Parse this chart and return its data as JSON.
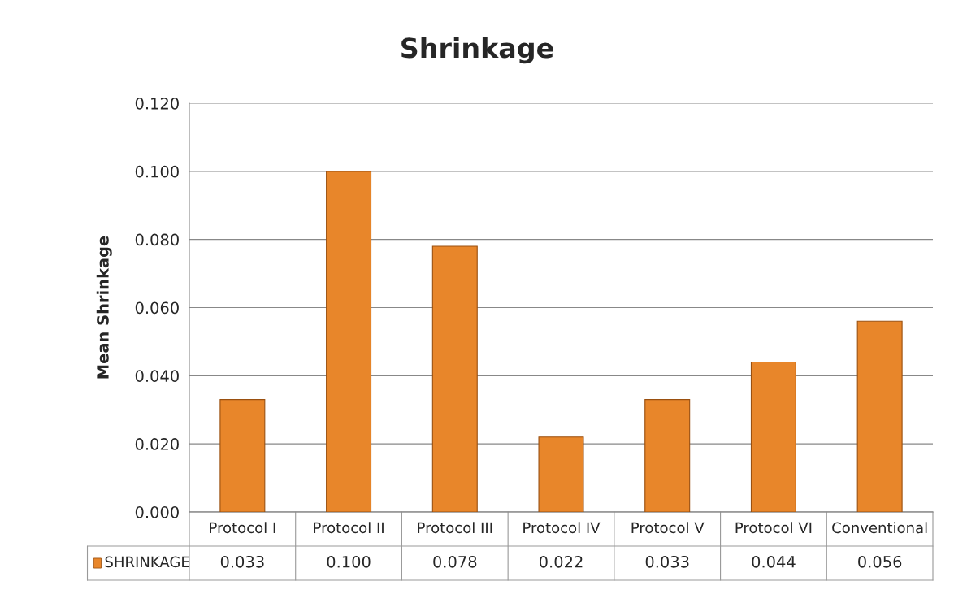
{
  "chart_data": {
    "type": "bar",
    "title": "Shrinkage",
    "ylabel": "Mean Shrinkage",
    "categories": [
      "Protocol I",
      "Protocol II",
      "Protocol III",
      "Protocol IV",
      "Protocol V",
      "Protocol VI",
      "Conventional"
    ],
    "series": [
      {
        "name": "SHRINKAGE",
        "color": "#e8862a",
        "values": [
          0.033,
          0.1,
          0.078,
          0.022,
          0.033,
          0.044,
          0.056
        ],
        "value_labels": [
          "0.033",
          "0.100",
          "0.078",
          "0.022",
          "0.033",
          "0.044",
          "0.056"
        ]
      }
    ],
    "ylim": [
      0,
      0.12
    ],
    "yticks": [
      {
        "value": 0,
        "label": "0.000"
      },
      {
        "value": 0.02,
        "label": "0.020"
      },
      {
        "value": 0.04,
        "label": "0.040"
      },
      {
        "value": 0.06,
        "label": "0.060"
      },
      {
        "value": 0.08,
        "label": "0.080"
      },
      {
        "value": 0.1,
        "label": "0.100"
      },
      {
        "value": 0.12,
        "label": "0.120"
      }
    ],
    "grid": "y"
  }
}
